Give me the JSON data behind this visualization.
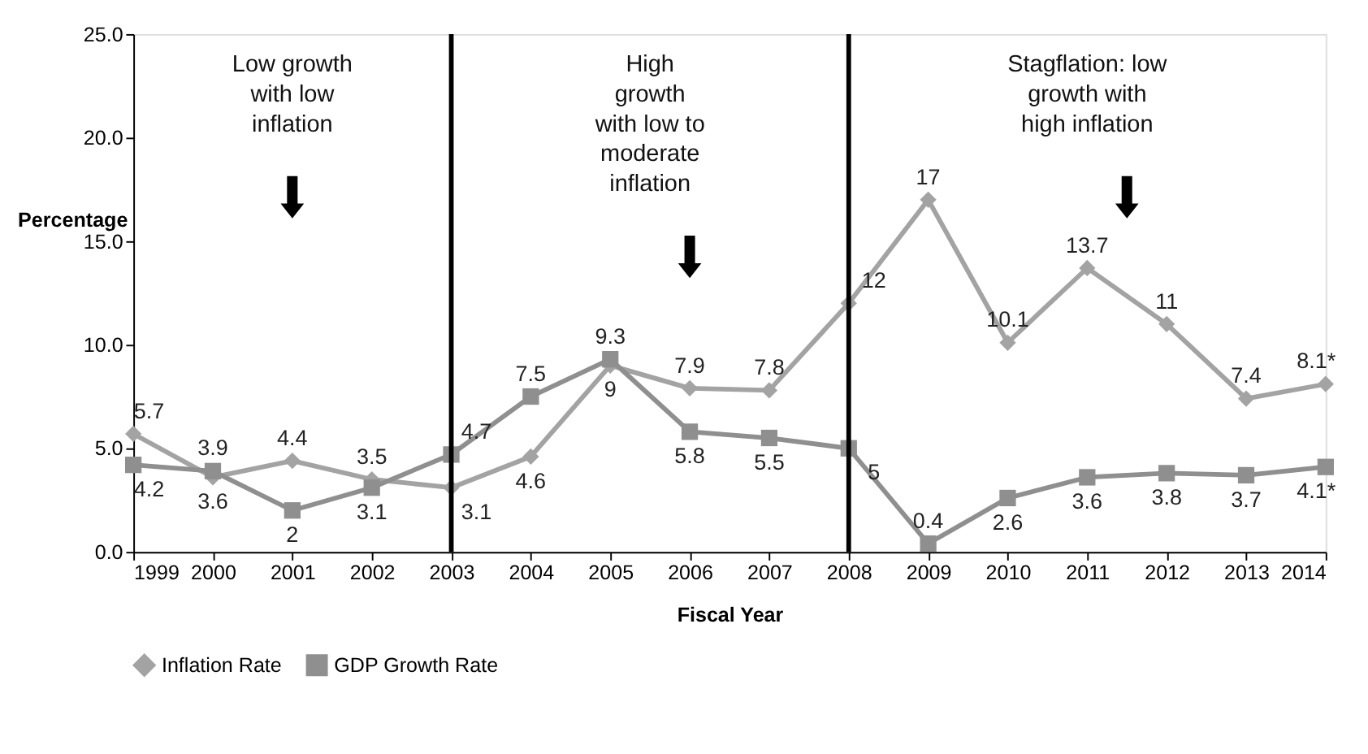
{
  "chart_data": {
    "type": "line",
    "xlabel": "Fiscal Year",
    "ylabel": "Percentage",
    "x": [
      1999,
      2000,
      2001,
      2002,
      2003,
      2004,
      2005,
      2006,
      2007,
      2008,
      2009,
      2010,
      2011,
      2012,
      2013,
      2014
    ],
    "series": [
      {
        "name": "Inflation Rate",
        "color": "#a3a3a3",
        "marker": "diamond",
        "values": [
          5.7,
          3.6,
          4.4,
          3.5,
          3.1,
          4.6,
          9,
          7.9,
          7.8,
          12,
          17,
          10.1,
          13.7,
          11,
          7.4,
          8.1
        ],
        "value_labels": [
          "5.7",
          "3.6",
          "4.4",
          "3.5",
          "3.1",
          "4.6",
          "9",
          "7.9",
          "7.8",
          "12",
          "17",
          "10.1",
          "13.7",
          "11",
          "7.4",
          "8.1*"
        ]
      },
      {
        "name": "GDP Growth Rate",
        "color": "#8f8f8f",
        "marker": "square",
        "values": [
          4.2,
          3.9,
          2,
          3.1,
          4.7,
          7.5,
          9.3,
          5.8,
          5.5,
          5,
          0.4,
          2.6,
          3.6,
          3.8,
          3.7,
          4.1
        ],
        "value_labels": [
          "4.2",
          "3.9",
          "2",
          "3.1",
          "4.7",
          "7.5",
          "9.3",
          "5.8",
          "5.5",
          "5",
          "0.4",
          "2.6",
          "3.6",
          "3.8",
          "3.7",
          "4.1*"
        ]
      }
    ],
    "xlim": [
      1999,
      2014
    ],
    "xticks": [
      1999,
      2000,
      2001,
      2002,
      2003,
      2004,
      2005,
      2006,
      2007,
      2008,
      2009,
      2010,
      2011,
      2012,
      2013,
      2014
    ],
    "ylim": [
      0,
      25
    ],
    "yticks": [
      {
        "value": 0,
        "label": "0.0"
      },
      {
        "value": 5,
        "label": "5.0"
      },
      {
        "value": 10,
        "label": "10.0"
      },
      {
        "value": 15,
        "label": "15.0"
      },
      {
        "value": 20,
        "label": "20.0"
      },
      {
        "value": 25,
        "label": "25.0"
      }
    ],
    "ref_lines": [
      {
        "axis": "x",
        "value": 2003,
        "color": "#000000"
      },
      {
        "axis": "x",
        "value": 2008,
        "color": "#000000"
      }
    ],
    "annotations": [
      "Low growth\nwith low\ninflation",
      "High\ngrowth\nwith low to\nmoderate\ninflation",
      "Stagflation: low\ngrowth with\nhigh inflation"
    ],
    "grid": false,
    "legend": "bottom",
    "line_style": "solid"
  }
}
